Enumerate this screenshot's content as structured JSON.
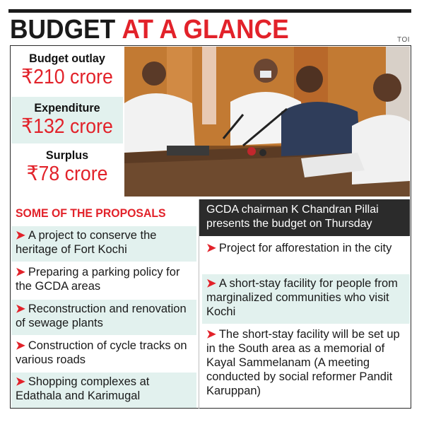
{
  "header": {
    "title_part1": "BUDGET",
    "title_part2": "AT A GLANCE",
    "source": "TOI"
  },
  "stats": [
    {
      "label": "Budget outlay",
      "value": "₹210 crore"
    },
    {
      "label": "Expenditure",
      "value": "₹132 crore"
    },
    {
      "label": "Surplus",
      "value": "₹78 crore"
    }
  ],
  "caption": "GCDA chairman K Chandran Pillai presents the budget on Thursday",
  "proposals": {
    "heading": "SOME OF THE PROPOSALS",
    "arrow": "➤",
    "left": [
      "A project to conserve the heritage of Fort Kochi",
      "Preparing a parking policy for the GCDA areas",
      "Reconstruction and renovation of sewage plants",
      "Construction of cycle tracks on various roads",
      "Shopping complexes at Edathala and Karimugal"
    ],
    "right": [
      "Project for afforestation in the city",
      "A short-stay facility for people from marginalized communities who visit Kochi",
      "The short-stay facility will be set up in the South area as a memorial of Kayal Sammelanam (A meeting conducted by social reformer Pandit Karuppan)"
    ]
  },
  "colors": {
    "accent": "#e2222a",
    "shade": "#e2f1ee",
    "dark": "#2b2b2b"
  }
}
